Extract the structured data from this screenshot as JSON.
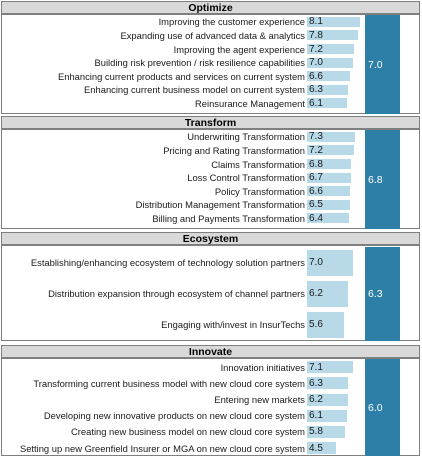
{
  "chart_data": {
    "type": "bar",
    "colors": {
      "item_bar": "#b7d9e8",
      "average_bar": "#2e7fa7"
    },
    "sections": [
      {
        "name": "Optimize",
        "average": 7.0,
        "items": [
          {
            "label": "Improving the customer experience",
            "value": 8.1
          },
          {
            "label": "Expanding use of advanced data & analytics",
            "value": 7.8
          },
          {
            "label": "Improving the agent experience",
            "value": 7.2
          },
          {
            "label": "Building risk prevention / risk resilience capabilities",
            "value": 7.0
          },
          {
            "label": "Enhancing current products and services on current system",
            "value": 6.6
          },
          {
            "label": "Enhancing current business model on current system",
            "value": 6.3
          },
          {
            "label": "Reinsurance Management",
            "value": 6.1
          }
        ]
      },
      {
        "name": "Transform",
        "average": 6.8,
        "items": [
          {
            "label": "Underwriting Transformation",
            "value": 7.3
          },
          {
            "label": "Pricing and Rating Transformation",
            "value": 7.2
          },
          {
            "label": "Claims Transformation",
            "value": 6.8
          },
          {
            "label": "Loss Control Transformation",
            "value": 6.7
          },
          {
            "label": "Policy Transformation",
            "value": 6.6
          },
          {
            "label": "Distribution Management Transformation",
            "value": 6.5
          },
          {
            "label": "Billing and Payments Transformation",
            "value": 6.4
          }
        ]
      },
      {
        "name": "Ecosystem",
        "average": 6.3,
        "items": [
          {
            "label": "Establishing/enhancing ecosystem of technology solution partners",
            "value": 7.0
          },
          {
            "label": "Distribution expansion through ecosystem of channel partners",
            "value": 6.2
          },
          {
            "label": "Engaging with/invest in InsurTechs",
            "value": 5.6
          }
        ]
      },
      {
        "name": "Innovate",
        "average": 6.0,
        "items": [
          {
            "label": "Innovation initiatives",
            "value": 7.1
          },
          {
            "label": "Transforming current business model with new cloud core system",
            "value": 6.3
          },
          {
            "label": "Entering new markets",
            "value": 6.2
          },
          {
            "label": "Developing new innovative products on new cloud core system",
            "value": 6.1
          },
          {
            "label": "Creating new business model on new cloud core system",
            "value": 5.8
          },
          {
            "label": "Setting up new Greenfield Insurer or MGA on new cloud core system",
            "value": 4.5
          }
        ]
      }
    ]
  }
}
